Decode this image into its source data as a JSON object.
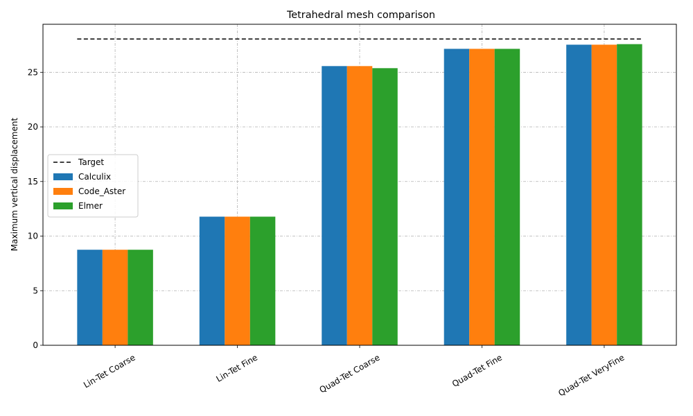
{
  "chart_data": {
    "type": "bar",
    "title": "Tetrahedral mesh comparison",
    "xlabel": "",
    "ylabel": "Maximum vertical displacement",
    "categories": [
      "Lin-Tet Coarse",
      "Lin-Tet Fine",
      "Quad-Tet Coarse",
      "Quad-Tet Fine",
      "Quad-Tet VeryFine"
    ],
    "series": [
      {
        "name": "Calculix",
        "color": "#1f77b4",
        "values": [
          8.75,
          11.78,
          25.57,
          27.15,
          27.53
        ]
      },
      {
        "name": "Code_Aster",
        "color": "#ff7f0e",
        "values": [
          8.75,
          11.78,
          25.57,
          27.15,
          27.53
        ]
      },
      {
        "name": "Elmer",
        "color": "#2ca02c",
        "values": [
          8.75,
          11.78,
          25.38,
          27.15,
          27.58
        ]
      }
    ],
    "target": {
      "name": "Target",
      "value": 28.05,
      "color": "#000000",
      "style": "dashed"
    },
    "ylim": [
      0,
      29.4
    ],
    "yticks": [
      0,
      5,
      10,
      15,
      20,
      25
    ],
    "grid": true,
    "legend_position": "center-left"
  }
}
